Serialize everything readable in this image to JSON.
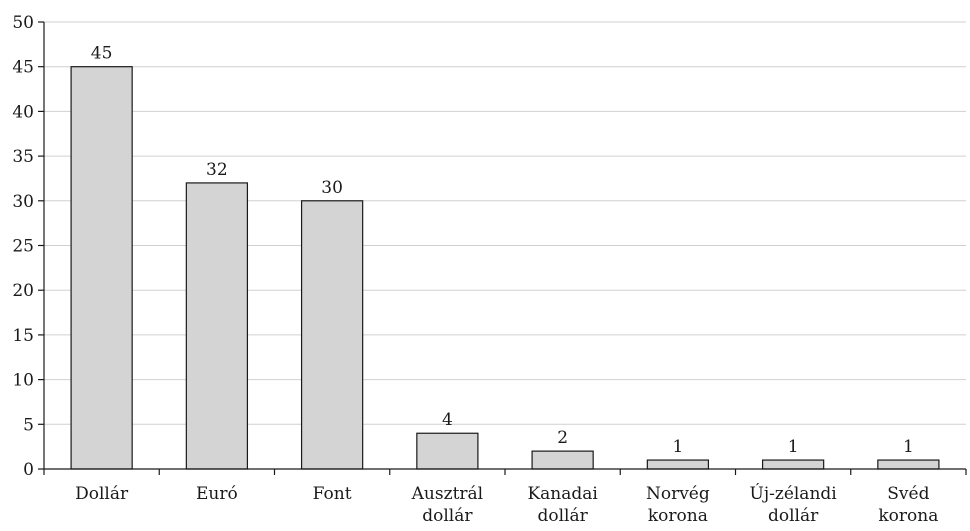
{
  "chart_data": {
    "type": "bar",
    "categories": [
      [
        "Dollár"
      ],
      [
        "Euró"
      ],
      [
        "Font"
      ],
      [
        "Ausztrál",
        "dollár"
      ],
      [
        "Kanadai",
        "dollár"
      ],
      [
        "Norvég",
        "korona"
      ],
      [
        "Új-zélandi",
        "dollár"
      ],
      [
        "Svéd",
        "korona"
      ]
    ],
    "values": [
      45,
      32,
      30,
      4,
      2,
      1,
      1,
      1
    ],
    "data_labels": [
      "45",
      "32",
      "30",
      "4",
      "2",
      "1",
      "1",
      "1"
    ],
    "title": "",
    "xlabel": "",
    "ylabel": "",
    "ylim": [
      0,
      50
    ],
    "yticks": [
      0,
      5,
      10,
      15,
      20,
      25,
      30,
      35,
      40,
      45,
      50
    ],
    "grid": true,
    "colors": {
      "bar_fill": "#d4d4d4",
      "bar_stroke": "#1a1a1a",
      "grid": "#d0d0d0"
    }
  }
}
